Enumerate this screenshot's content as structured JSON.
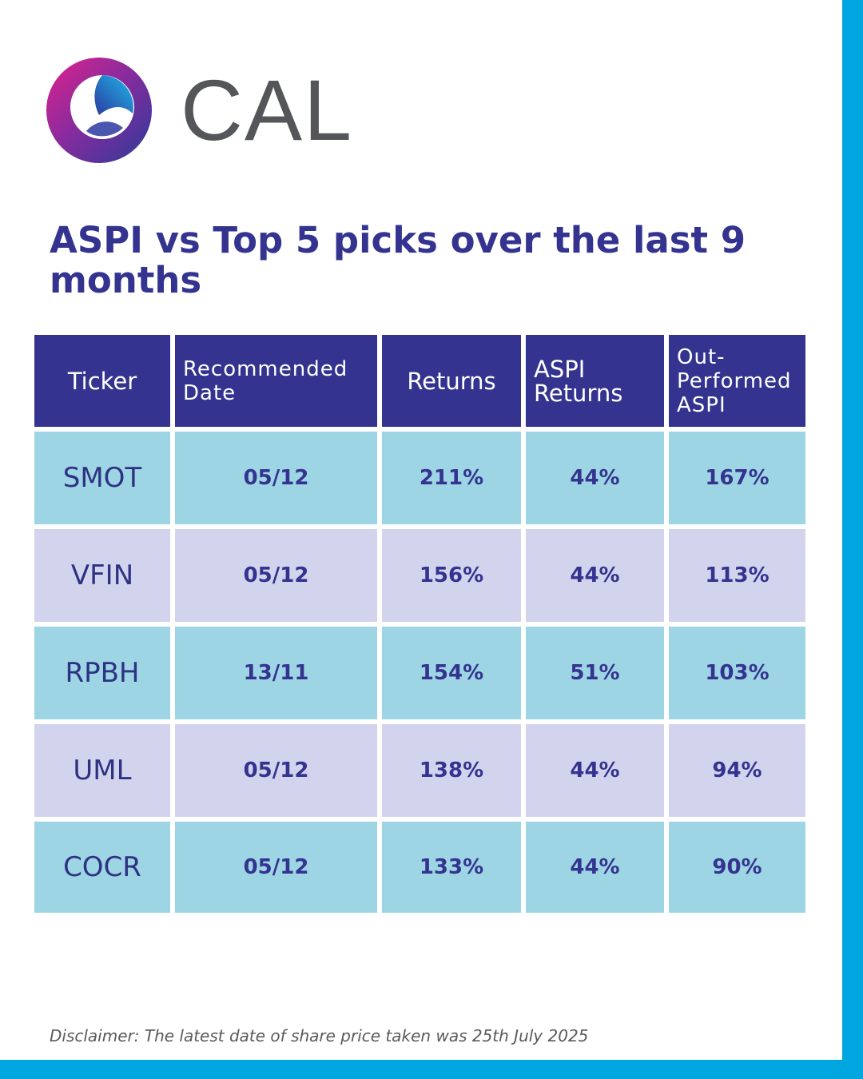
{
  "brand": {
    "name": "CAL",
    "logo_icon": "cal-logo-icon"
  },
  "title": "ASPI vs Top 5 picks over the last 9 months",
  "table": {
    "headers": [
      "Ticker",
      "Recommended Date",
      "Returns",
      "ASPI Returns",
      "Out-Performed ASPI"
    ],
    "rows": [
      [
        "SMOT",
        "05/12",
        "211%",
        "44%",
        "167%"
      ],
      [
        "VFIN",
        "05/12",
        "156%",
        "44%",
        "113%"
      ],
      [
        "RPBH",
        "13/11",
        "154%",
        "51%",
        "103%"
      ],
      [
        "UML",
        "05/12",
        "138%",
        "44%",
        "94%"
      ],
      [
        "COCR",
        "05/12",
        "133%",
        "44%",
        "90%"
      ]
    ]
  },
  "disclaimer": "Disclaimer: The latest date of share price taken was 25th July 2025",
  "colors": {
    "header_bg": "#343490",
    "row_alt_a": "#9dd5e4",
    "row_alt_b": "#d1d4ec",
    "border_accent": "#00a6e0"
  }
}
